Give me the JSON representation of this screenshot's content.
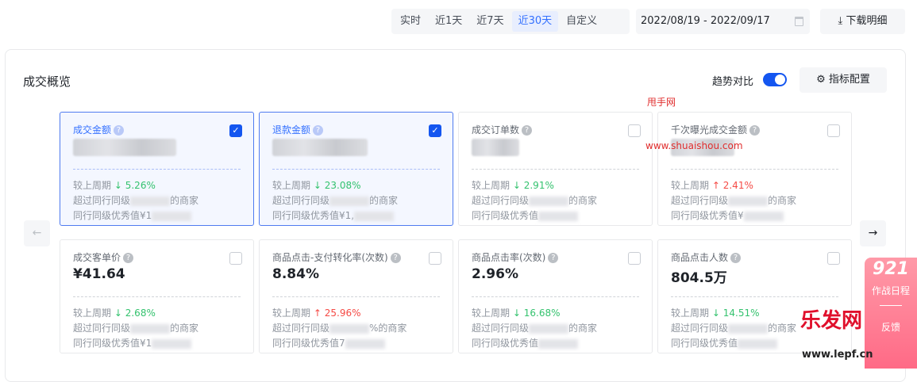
{
  "toolbar": {
    "ranges": [
      "实时",
      "近1天",
      "近7天",
      "近30天",
      "自定义"
    ],
    "active_range": "近30天",
    "date_range": "2022/08/19 - 2022/09/17",
    "download_label": "下载明细"
  },
  "panel": {
    "title": "成交概览",
    "trend_label": "趋势对比",
    "trend_on": true,
    "config_label": "指标配置"
  },
  "cards": [
    {
      "name": "成交金额",
      "checked": true,
      "value": "",
      "change": "5.26%",
      "dir": "down",
      "line2a": "超过同行同级",
      "line2b": "的商家",
      "line3": "同行同级优秀值¥1"
    },
    {
      "name": "退款金额",
      "checked": true,
      "value": "",
      "change": "23.08%",
      "dir": "down",
      "line2a": "超过同行同级",
      "line2b": "的商家",
      "line3": "同行同级优秀值¥1,"
    },
    {
      "name": "成交订单数",
      "checked": false,
      "value": "",
      "change": "2.91%",
      "dir": "down",
      "line2a": "超过同行同级",
      "line2b": "的商家",
      "line3": "同行同级优秀值"
    },
    {
      "name": "千次曝光成交金额",
      "checked": false,
      "value": "",
      "change": "2.41%",
      "dir": "up",
      "line2a": "超过同行同级",
      "line2b": "的商家",
      "line3": "同行同级优秀值¥"
    },
    {
      "name": "成交客单价",
      "checked": false,
      "value": "¥41.64",
      "change": "2.68%",
      "dir": "down",
      "line2a": "超过同行同级",
      "line2b": "的商家",
      "line3": "同行同级优秀值¥1"
    },
    {
      "name": "商品点击-支付转化率(次数)",
      "checked": false,
      "value": "8.84%",
      "change": "25.96%",
      "dir": "up",
      "line2a": "超过同行同级",
      "line2b": "%的商家",
      "line3": "同行同级优秀值7"
    },
    {
      "name": "商品点击率(次数)",
      "checked": false,
      "value": "2.96%",
      "change": "16.68%",
      "dir": "down",
      "line2a": "超过同行同级",
      "line2b": "的商家",
      "line3": "同行同级优秀值"
    },
    {
      "name": "商品点击人数",
      "checked": false,
      "value": "804.5万",
      "change": "14.51%",
      "dir": "down",
      "line2a": "超过同行同级",
      "line2b": "的商家",
      "line3": "同行同级优秀值"
    }
  ],
  "compare_label": "较上周期",
  "side_widget": {
    "badge": "921",
    "label": "作战日程",
    "label2": "反馈"
  },
  "watermarks": {
    "w1": "甩手网",
    "w2": "www.shuaishou.com",
    "w3": "乐发网",
    "w4": "www.lepf.cn"
  },
  "colors": {
    "accent": "#1456f0",
    "down": "#34c26e",
    "up": "#f54a45"
  }
}
